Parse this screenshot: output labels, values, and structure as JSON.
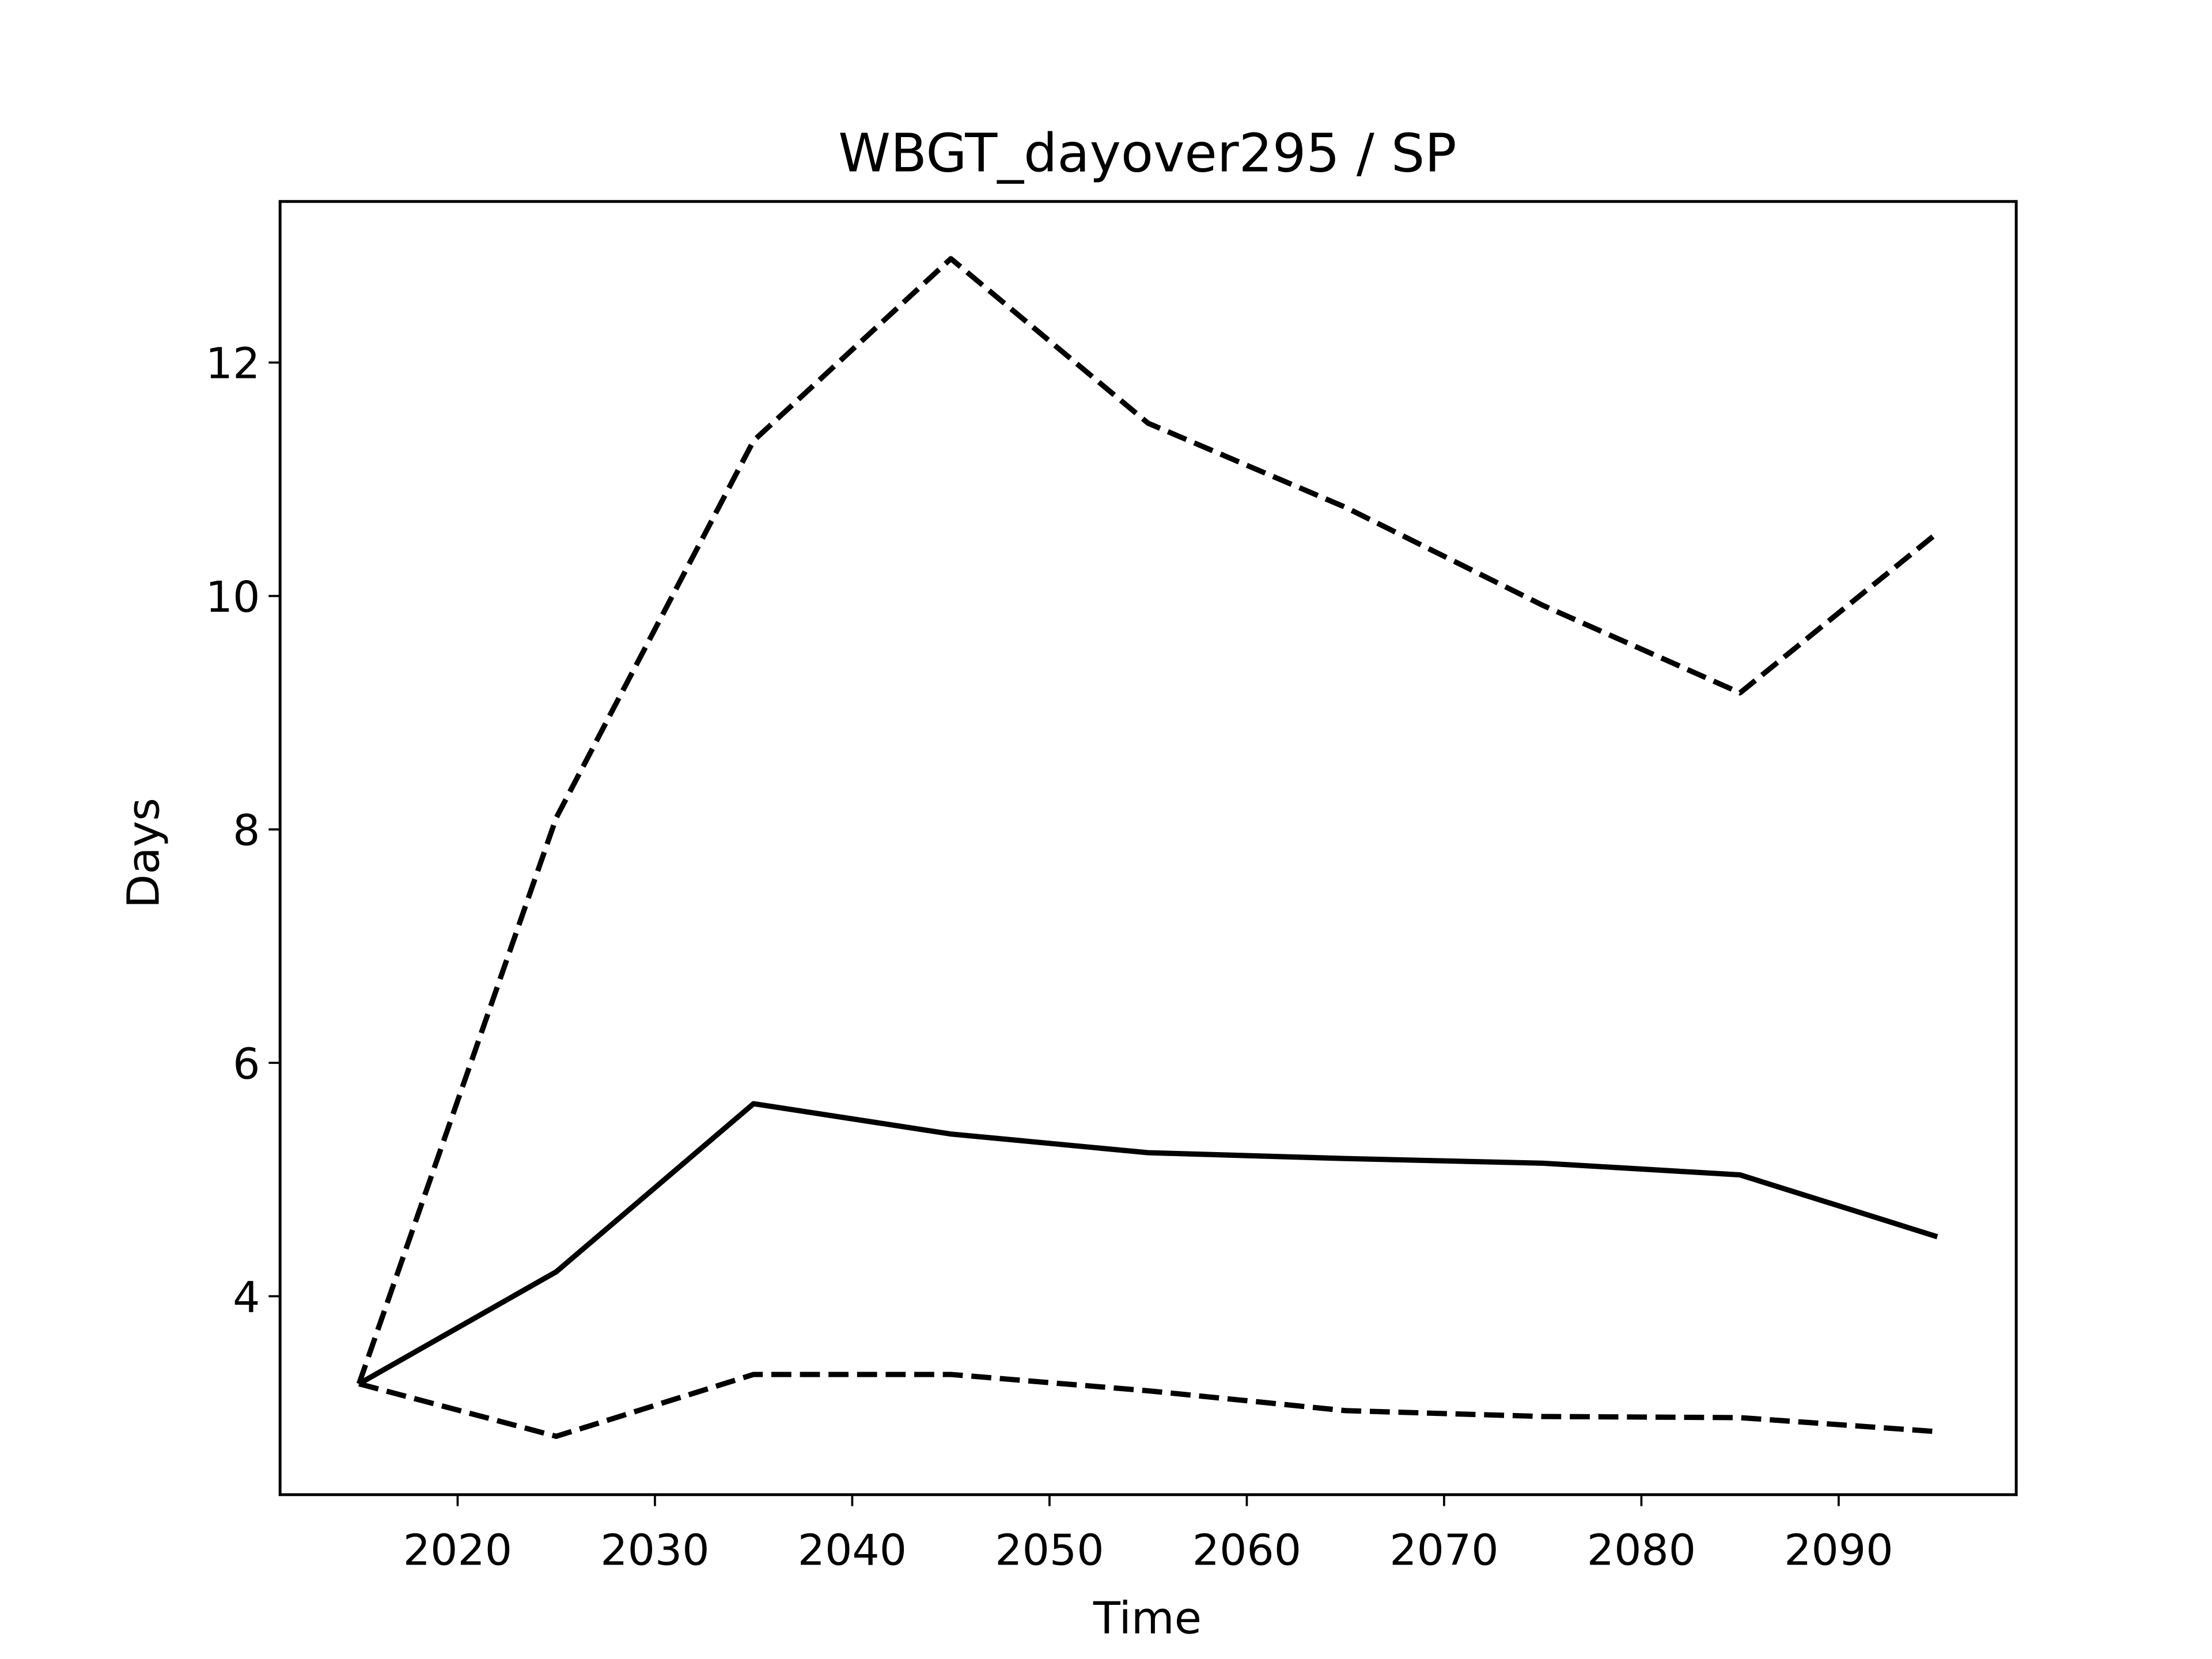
{
  "chart_data": {
    "type": "line",
    "title": "WBGT_dayover295 / SP",
    "xlabel": "Time",
    "ylabel": "Days",
    "x": [
      2015,
      2025,
      2035,
      2045,
      2055,
      2065,
      2075,
      2085,
      2095
    ],
    "series": [
      {
        "color": "#000000",
        "style": "solid",
        "values": [
          3.25,
          4.21,
          5.65,
          5.39,
          5.23,
          5.18,
          5.14,
          5.04,
          4.51
        ]
      },
      {
        "color": "#000000",
        "style": "dashed",
        "values": [
          3.25,
          8.1,
          11.33,
          12.89,
          11.48,
          10.76,
          9.92,
          9.17,
          10.54
        ]
      },
      {
        "color": "#000000",
        "style": "dashed",
        "values": [
          3.25,
          2.8,
          3.33,
          3.33,
          3.19,
          3.02,
          2.97,
          2.96,
          2.84
        ]
      }
    ],
    "xlim": [
      2011,
      2099
    ],
    "xticks": [
      2020,
      2030,
      2040,
      2050,
      2060,
      2070,
      2080,
      2090
    ],
    "ylim": [
      2.3,
      13.38
    ],
    "yticks": [
      4,
      6,
      8,
      10,
      12
    ],
    "grid": false
  }
}
